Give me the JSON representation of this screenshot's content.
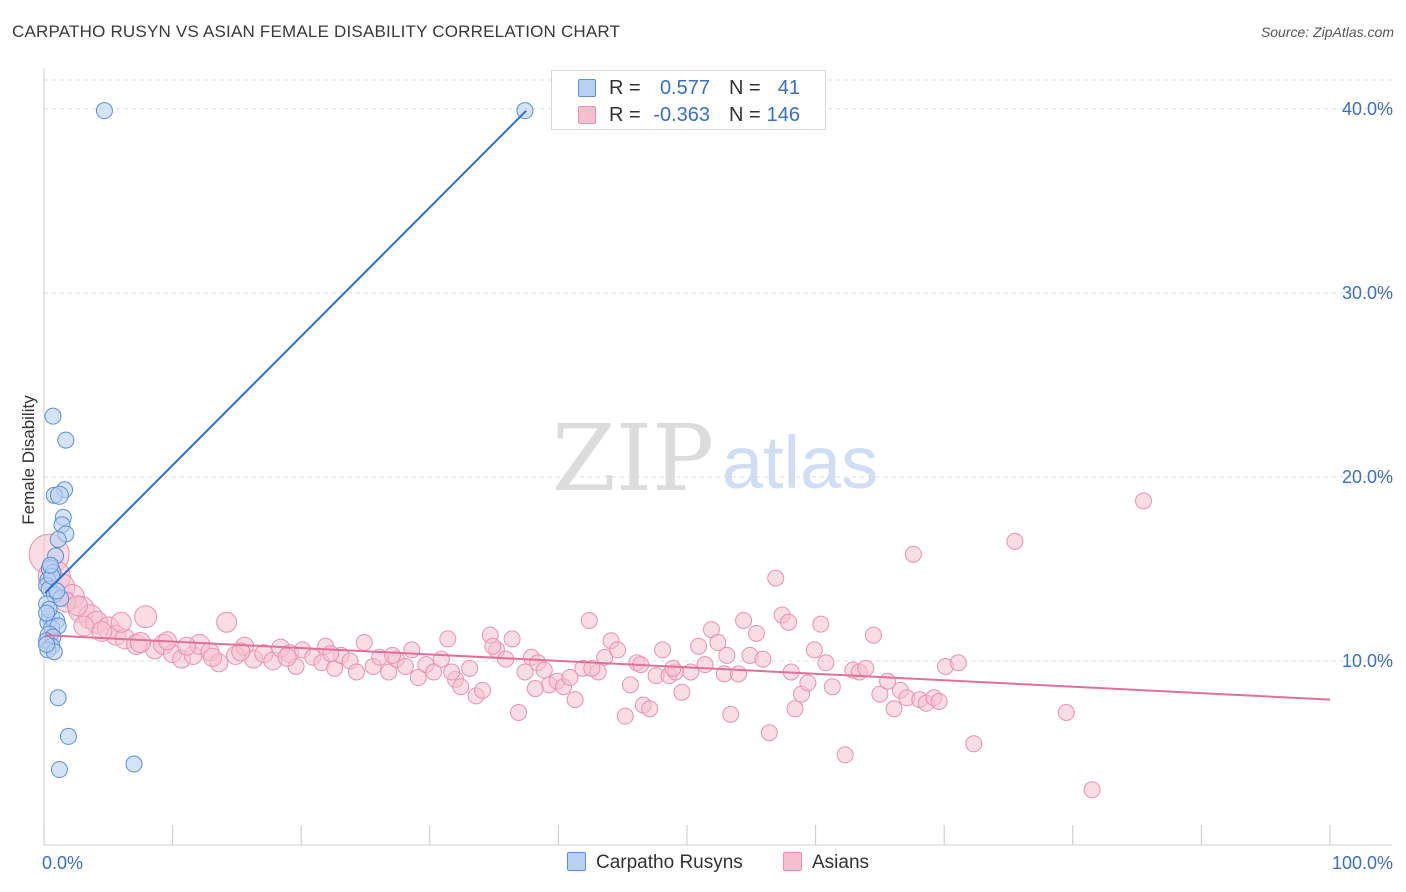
{
  "title": "CARPATHO RUSYN VS ASIAN FEMALE DISABILITY CORRELATION CHART",
  "source": "Source: ZipAtlas.com",
  "watermark": {
    "zip": "ZIP",
    "atlas": "atlas"
  },
  "legend": {
    "r_label": "R =",
    "n_label": "N =",
    "rows": [
      {
        "name": "Carpatho Rusyns",
        "r": "0.577",
        "n": "41"
      },
      {
        "name": "Asians",
        "r": "-0.363",
        "n": "146"
      }
    ]
  },
  "colors": {
    "blue_fill": "#b9d1f3",
    "blue_stroke": "#5b8fd6",
    "blue_line": "#2f6fd0",
    "pink_fill": "#f6bfd0",
    "pink_stroke": "#e892b0",
    "pink_line": "#e0709a",
    "tick_label": "#3a6fc4",
    "grid": "#dddddd"
  },
  "chart_data": {
    "type": "scatter",
    "title": "CARPATHO RUSYN VS ASIAN FEMALE DISABILITY CORRELATION CHART",
    "xlabel": "",
    "ylabel": "Female Disability",
    "xlim": [
      0,
      100
    ],
    "ylim": [
      0,
      42
    ],
    "x_tick_labels": [
      "0.0%",
      "100.0%"
    ],
    "y_ticks": [
      10,
      20,
      30,
      40
    ],
    "y_tick_labels": [
      "10.0%",
      "20.0%",
      "30.0%",
      "40.0%"
    ],
    "legend_position": "top-center",
    "series": [
      {
        "name": "Carpatho Rusyns",
        "r": 0.577,
        "n": 41,
        "trendline": {
          "x": [
            0.1,
            37.5
          ],
          "y": [
            13.7,
            39.9
          ]
        },
        "points": [
          [
            4.7,
            39.9,
            8
          ],
          [
            37.4,
            39.9,
            8
          ],
          [
            0.7,
            23.3,
            8
          ],
          [
            1.7,
            22.0,
            8
          ],
          [
            1.6,
            19.3,
            8
          ],
          [
            0.8,
            19.0,
            8
          ],
          [
            1.2,
            19.0,
            9
          ],
          [
            1.5,
            17.8,
            8
          ],
          [
            1.4,
            17.4,
            8
          ],
          [
            1.7,
            16.9,
            8
          ],
          [
            1.1,
            16.6,
            8
          ],
          [
            0.9,
            15.7,
            8
          ],
          [
            0.5,
            15.0,
            9
          ],
          [
            0.7,
            14.8,
            8
          ],
          [
            0.3,
            14.4,
            8
          ],
          [
            0.2,
            14.1,
            8
          ],
          [
            0.4,
            13.9,
            8
          ],
          [
            0.8,
            13.6,
            8
          ],
          [
            1.3,
            13.4,
            8
          ],
          [
            0.2,
            13.1,
            8
          ],
          [
            0.5,
            12.4,
            9
          ],
          [
            0.3,
            12.1,
            8
          ],
          [
            0.9,
            12.2,
            9
          ],
          [
            0.6,
            11.8,
            8
          ],
          [
            1.1,
            11.9,
            8
          ],
          [
            0.4,
            11.4,
            9
          ],
          [
            0.7,
            11.3,
            8
          ],
          [
            0.2,
            11.1,
            8
          ],
          [
            0.6,
            10.8,
            8
          ],
          [
            0.3,
            10.6,
            8
          ],
          [
            0.8,
            10.5,
            8
          ],
          [
            0.4,
            12.8,
            8
          ],
          [
            0.6,
            14.6,
            8
          ],
          [
            1.0,
            13.8,
            8
          ],
          [
            0.2,
            12.6,
            8
          ],
          [
            1.1,
            8.0,
            8
          ],
          [
            1.9,
            5.9,
            8
          ],
          [
            7.0,
            4.4,
            8
          ],
          [
            1.2,
            4.1,
            8
          ],
          [
            0.2,
            10.9,
            8
          ],
          [
            0.5,
            15.2,
            8
          ]
        ]
      },
      {
        "name": "Asians",
        "r": -0.363,
        "n": 146,
        "trendline": {
          "x": [
            0.1,
            100.0
          ],
          "y": [
            11.4,
            7.9
          ]
        },
        "points": [
          [
            0.4,
            15.8,
            20
          ],
          [
            0.8,
            14.6,
            16
          ],
          [
            1.3,
            14.0,
            14
          ],
          [
            2.2,
            13.5,
            12
          ],
          [
            2.9,
            12.8,
            13
          ],
          [
            3.6,
            12.4,
            12
          ],
          [
            4.1,
            12.1,
            11
          ],
          [
            5.0,
            11.8,
            11
          ],
          [
            5.6,
            11.4,
            10
          ],
          [
            6.3,
            11.2,
            10
          ],
          [
            7.2,
            10.9,
            10
          ],
          [
            7.9,
            12.4,
            11
          ],
          [
            8.6,
            10.6,
            9
          ],
          [
            9.3,
            10.9,
            10
          ],
          [
            10.0,
            10.4,
            9
          ],
          [
            10.7,
            10.1,
            9
          ],
          [
            11.6,
            10.3,
            9
          ],
          [
            12.1,
            10.9,
            10
          ],
          [
            12.9,
            10.5,
            9
          ],
          [
            13.6,
            9.9,
            9
          ],
          [
            14.2,
            12.1,
            10
          ],
          [
            14.9,
            10.3,
            9
          ],
          [
            15.6,
            10.8,
            9
          ],
          [
            16.3,
            10.1,
            9
          ],
          [
            17.1,
            10.4,
            9
          ],
          [
            17.8,
            10.0,
            9
          ],
          [
            18.4,
            10.7,
            9
          ],
          [
            19.1,
            10.4,
            9
          ],
          [
            19.6,
            9.7,
            8
          ],
          [
            20.1,
            10.6,
            8
          ],
          [
            20.9,
            10.2,
            8
          ],
          [
            21.6,
            9.9,
            8
          ],
          [
            21.9,
            10.8,
            8
          ],
          [
            22.6,
            9.6,
            8
          ],
          [
            23.1,
            10.3,
            8
          ],
          [
            23.8,
            10.0,
            8
          ],
          [
            24.3,
            9.4,
            8
          ],
          [
            24.9,
            11.0,
            8
          ],
          [
            25.6,
            9.7,
            8
          ],
          [
            26.1,
            10.2,
            8
          ],
          [
            26.8,
            9.4,
            8
          ],
          [
            27.4,
            10.1,
            8
          ],
          [
            28.1,
            9.7,
            8
          ],
          [
            28.6,
            10.6,
            8
          ],
          [
            29.1,
            9.1,
            8
          ],
          [
            29.7,
            9.8,
            8
          ],
          [
            30.3,
            9.4,
            8
          ],
          [
            30.9,
            10.1,
            8
          ],
          [
            31.4,
            11.2,
            8
          ],
          [
            32.0,
            9.0,
            8
          ],
          [
            32.4,
            8.6,
            8
          ],
          [
            33.1,
            9.6,
            8
          ],
          [
            33.6,
            8.1,
            8
          ],
          [
            34.1,
            8.4,
            8
          ],
          [
            34.7,
            11.4,
            8
          ],
          [
            35.2,
            10.6,
            8
          ],
          [
            35.9,
            10.1,
            8
          ],
          [
            36.4,
            11.2,
            8
          ],
          [
            36.9,
            7.2,
            8
          ],
          [
            37.4,
            9.4,
            8
          ],
          [
            37.9,
            10.2,
            8
          ],
          [
            38.4,
            9.9,
            8
          ],
          [
            38.9,
            9.5,
            8
          ],
          [
            39.3,
            8.7,
            8
          ],
          [
            39.9,
            8.9,
            8
          ],
          [
            40.4,
            8.6,
            8
          ],
          [
            40.9,
            9.1,
            8
          ],
          [
            41.3,
            7.9,
            8
          ],
          [
            41.9,
            9.6,
            8
          ],
          [
            42.4,
            12.2,
            8
          ],
          [
            43.1,
            9.4,
            8
          ],
          [
            43.6,
            10.2,
            8
          ],
          [
            44.1,
            11.1,
            8
          ],
          [
            44.6,
            10.6,
            8
          ],
          [
            45.2,
            7.0,
            8
          ],
          [
            45.6,
            8.7,
            8
          ],
          [
            46.1,
            9.9,
            8
          ],
          [
            46.6,
            7.6,
            8
          ],
          [
            47.1,
            7.4,
            8
          ],
          [
            47.6,
            9.2,
            8
          ],
          [
            48.1,
            10.6,
            8
          ],
          [
            48.6,
            9.2,
            8
          ],
          [
            49.1,
            9.4,
            8
          ],
          [
            49.6,
            8.3,
            8
          ],
          [
            50.3,
            9.4,
            8
          ],
          [
            50.9,
            10.8,
            8
          ],
          [
            51.4,
            9.8,
            8
          ],
          [
            51.9,
            11.7,
            8
          ],
          [
            52.4,
            11.0,
            8
          ],
          [
            52.9,
            9.3,
            8
          ],
          [
            53.4,
            7.1,
            8
          ],
          [
            54.0,
            9.3,
            8
          ],
          [
            54.4,
            12.2,
            8
          ],
          [
            54.9,
            10.3,
            8
          ],
          [
            55.4,
            11.5,
            8
          ],
          [
            55.9,
            10.1,
            8
          ],
          [
            56.4,
            6.1,
            8
          ],
          [
            56.9,
            14.5,
            8
          ],
          [
            57.4,
            12.5,
            8
          ],
          [
            57.9,
            12.1,
            8
          ],
          [
            58.4,
            7.4,
            8
          ],
          [
            58.9,
            8.2,
            8
          ],
          [
            59.4,
            8.8,
            8
          ],
          [
            59.9,
            10.6,
            8
          ],
          [
            60.4,
            12.0,
            8
          ],
          [
            60.8,
            9.9,
            8
          ],
          [
            61.3,
            8.6,
            8
          ],
          [
            62.3,
            4.9,
            8
          ],
          [
            62.9,
            9.5,
            8
          ],
          [
            63.4,
            9.4,
            8
          ],
          [
            63.9,
            9.6,
            8
          ],
          [
            64.5,
            11.4,
            8
          ],
          [
            65.0,
            8.2,
            8
          ],
          [
            65.6,
            8.9,
            8
          ],
          [
            66.1,
            7.4,
            8
          ],
          [
            66.6,
            8.4,
            8
          ],
          [
            67.1,
            8.0,
            8
          ],
          [
            67.6,
            15.8,
            8
          ],
          [
            68.1,
            7.9,
            8
          ],
          [
            68.6,
            7.7,
            8
          ],
          [
            69.2,
            8.0,
            8
          ],
          [
            69.6,
            7.8,
            8
          ],
          [
            70.1,
            9.7,
            8
          ],
          [
            71.1,
            9.9,
            8
          ],
          [
            72.3,
            5.5,
            8
          ],
          [
            75.5,
            16.5,
            8
          ],
          [
            79.5,
            7.2,
            8
          ],
          [
            81.5,
            3.0,
            8
          ],
          [
            85.5,
            18.7,
            8
          ],
          [
            1.7,
            13.2,
            10
          ],
          [
            2.6,
            13.0,
            10
          ],
          [
            3.1,
            11.9,
            10
          ],
          [
            4.5,
            11.6,
            10
          ],
          [
            6.0,
            12.1,
            10
          ],
          [
            7.5,
            11.0,
            10
          ],
          [
            9.6,
            11.1,
            9
          ],
          [
            11.1,
            10.8,
            9
          ],
          [
            13.1,
            10.2,
            9
          ],
          [
            15.3,
            10.5,
            9
          ],
          [
            18.9,
            10.2,
            9
          ],
          [
            22.3,
            10.4,
            8
          ],
          [
            27.1,
            10.3,
            8
          ],
          [
            31.7,
            9.4,
            8
          ],
          [
            34.9,
            10.8,
            8
          ],
          [
            38.2,
            8.5,
            8
          ],
          [
            42.6,
            9.6,
            8
          ],
          [
            46.4,
            9.8,
            8
          ],
          [
            48.9,
            9.6,
            8
          ],
          [
            53.1,
            10.3,
            8
          ],
          [
            58.1,
            9.4,
            8
          ]
        ]
      }
    ]
  }
}
